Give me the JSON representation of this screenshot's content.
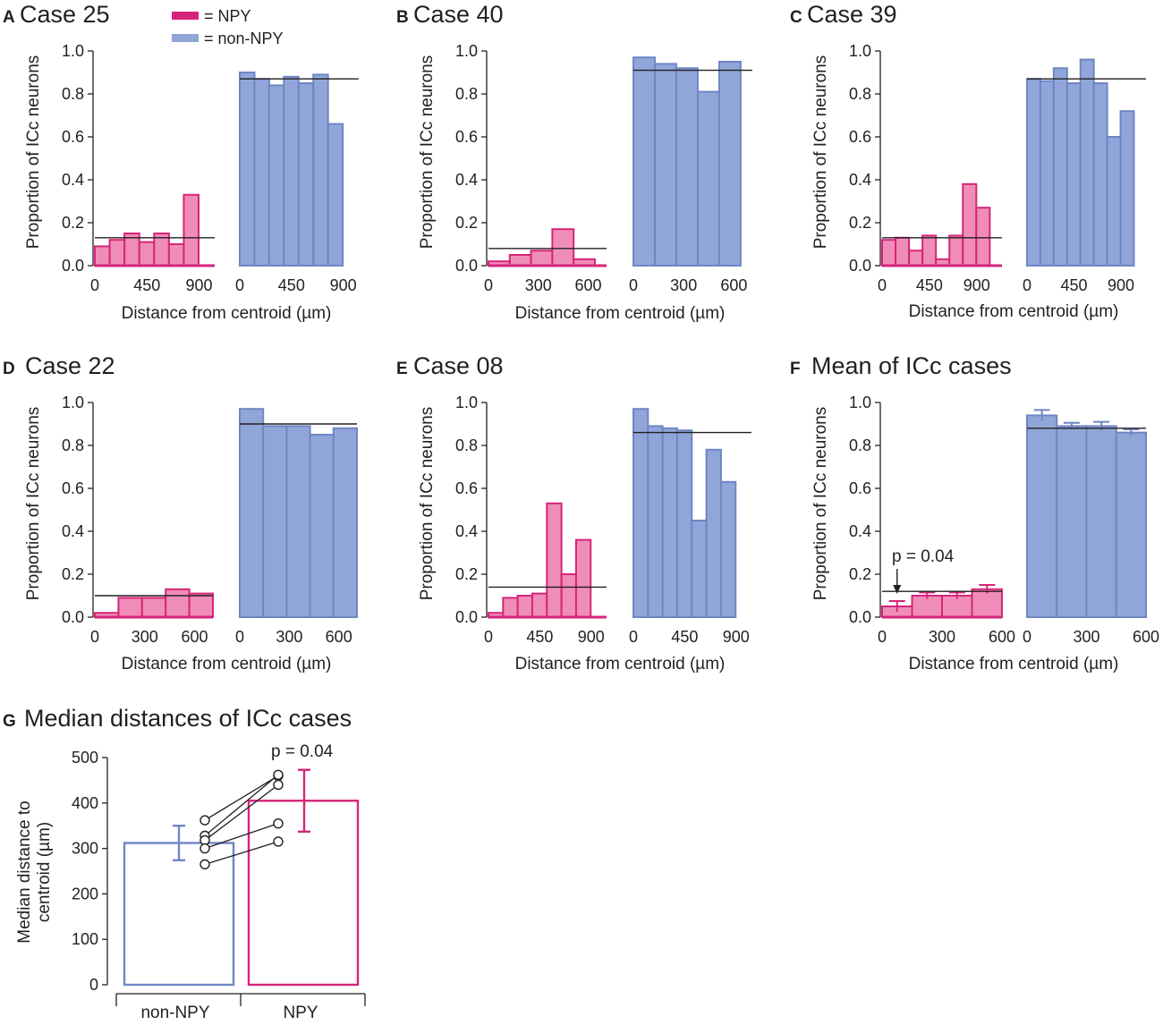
{
  "colors": {
    "npy_fill": "#ef8db8",
    "npy_stroke": "#d6257a",
    "non_fill": "#91a6d8",
    "non_stroke": "#6f86c4",
    "line": "#231f20"
  },
  "legend": {
    "npy": "= NPY",
    "non": "= non-NPY"
  },
  "chart_data": [
    {
      "panel": "A",
      "title": "Case 25",
      "type": "bar",
      "ylabel": "Proportion of ICc neurons",
      "xlabel": "Distance from centroid (µm)",
      "ylim": [
        0,
        1.0
      ],
      "yticks": [
        "0.0",
        "0.2",
        "0.4",
        "0.6",
        "0.8",
        "1.0"
      ],
      "npy": {
        "xlim": [
          0,
          1035
        ],
        "xticks": [
          0,
          450,
          900
        ],
        "bin_width": 128,
        "values": [
          0.09,
          0.12,
          0.15,
          0.11,
          0.15,
          0.1,
          0.33
        ],
        "mean": 0.13
      },
      "non": {
        "xlim": [
          0,
          1035
        ],
        "xticks": [
          0,
          450,
          900
        ],
        "bin_width": 128,
        "values": [
          0.9,
          0.87,
          0.84,
          0.88,
          0.85,
          0.89,
          0.66
        ],
        "mean": 0.87
      }
    },
    {
      "panel": "B",
      "title": "Case 40",
      "type": "bar",
      "ylabel": "Proportion of ICc neurons",
      "xlabel": "Distance from centroid (µm)",
      "ylim": [
        0,
        1.0
      ],
      "yticks": [
        "0.0",
        "0.2",
        "0.4",
        "0.6",
        "0.8",
        "1.0"
      ],
      "npy": {
        "xlim": [
          0,
          710
        ],
        "xticks": [
          0,
          300,
          600
        ],
        "bin_width": 128,
        "values": [
          0.02,
          0.05,
          0.07,
          0.17,
          0.03
        ],
        "mean": 0.08
      },
      "non": {
        "xlim": [
          0,
          710
        ],
        "xticks": [
          0,
          300,
          600
        ],
        "bin_width": 128,
        "values": [
          0.97,
          0.94,
          0.92,
          0.81,
          0.95
        ],
        "mean": 0.91
      }
    },
    {
      "panel": "C",
      "title": "Case 39",
      "type": "bar",
      "ylabel": "Proportion of ICc neurons",
      "xlabel": "Distance from centroid (µm)",
      "ylim": [
        0,
        1.0
      ],
      "yticks": [
        "0.0",
        "0.2",
        "0.4",
        "0.6",
        "0.8",
        "1.0"
      ],
      "npy": {
        "xlim": [
          0,
          1140
        ],
        "xticks": [
          0,
          450,
          900
        ],
        "bin_width": 128,
        "values": [
          0.12,
          0.13,
          0.07,
          0.14,
          0.03,
          0.14,
          0.38,
          0.27
        ],
        "mean": 0.13
      },
      "non": {
        "xlim": [
          0,
          1140
        ],
        "xticks": [
          0,
          450,
          900
        ],
        "bin_width": 128,
        "values": [
          0.87,
          0.86,
          0.92,
          0.85,
          0.96,
          0.85,
          0.6,
          0.72
        ],
        "mean": 0.87
      }
    },
    {
      "panel": "D",
      "title": "Case 22",
      "type": "bar",
      "ylabel": "Proportion of ICc neurons",
      "xlabel": "Distance from centroid (µm)",
      "ylim": [
        0,
        1.0
      ],
      "yticks": [
        "0.0",
        "0.2",
        "0.4",
        "0.6",
        "0.8",
        "1.0"
      ],
      "npy": {
        "xlim": [
          0,
          710
        ],
        "xticks": [
          0,
          300,
          600
        ],
        "bin_width": 142,
        "values": [
          0.02,
          0.09,
          0.09,
          0.13,
          0.11
        ],
        "mean": 0.1
      },
      "non": {
        "xlim": [
          0,
          710
        ],
        "xticks": [
          0,
          300,
          600
        ],
        "bin_width": 142,
        "values": [
          0.97,
          0.89,
          0.89,
          0.85,
          0.88
        ],
        "mean": 0.9
      }
    },
    {
      "panel": "E",
      "title": "Case 08",
      "type": "bar",
      "ylabel": "Proportion of ICc neurons",
      "xlabel": "Distance from centroid (µm)",
      "ylim": [
        0,
        1.0
      ],
      "yticks": [
        "0.0",
        "0.2",
        "0.4",
        "0.6",
        "0.8",
        "1.0"
      ],
      "npy": {
        "xlim": [
          0,
          1035
        ],
        "xticks": [
          0,
          450,
          900
        ],
        "bin_width": 128,
        "values": [
          0.02,
          0.09,
          0.1,
          0.11,
          0.53,
          0.2,
          0.36
        ],
        "mean": 0.14
      },
      "non": {
        "xlim": [
          0,
          1035
        ],
        "xticks": [
          0,
          450,
          900
        ],
        "bin_width": 128,
        "values": [
          0.97,
          0.89,
          0.88,
          0.87,
          0.45,
          0.78,
          0.63
        ],
        "mean": 0.86
      }
    },
    {
      "panel": "F",
      "title": "Mean of ICc cases",
      "type": "bar",
      "ylabel": "Proportion of ICc neurons",
      "xlabel": "Distance from centroid (µm)",
      "ylim": [
        0,
        1.0
      ],
      "yticks": [
        "0.0",
        "0.2",
        "0.4",
        "0.6",
        "0.8",
        "1.0"
      ],
      "annotation": "p = 0.04",
      "npy": {
        "xlim": [
          0,
          600
        ],
        "xticks": [
          0,
          300,
          600
        ],
        "bin_width": 150,
        "values": [
          0.05,
          0.1,
          0.1,
          0.13
        ],
        "errors": [
          0.025,
          0.015,
          0.015,
          0.02
        ],
        "mean": 0.12
      },
      "non": {
        "xlim": [
          0,
          600
        ],
        "xticks": [
          0,
          300,
          600
        ],
        "bin_width": 150,
        "values": [
          0.94,
          0.89,
          0.89,
          0.86
        ],
        "errors": [
          0.025,
          0.015,
          0.02,
          0.015
        ],
        "mean": 0.88
      }
    },
    {
      "panel": "G",
      "title": "Median distances of ICc cases",
      "type": "bar",
      "ylabel": [
        "Median distance to",
        "centroid  (µm)"
      ],
      "ylim": [
        0,
        500
      ],
      "yticks": [
        "0",
        "100",
        "200",
        "300",
        "400",
        "500"
      ],
      "categories": [
        "non-NPY",
        "NPY"
      ],
      "values": [
        312,
        405
      ],
      "errors": [
        38,
        68
      ],
      "annotation": "p = 0.04",
      "pairs": [
        [
          362,
          460
        ],
        [
          328,
          462
        ],
        [
          318,
          440
        ],
        [
          300,
          355
        ],
        [
          265,
          315
        ]
      ]
    }
  ]
}
